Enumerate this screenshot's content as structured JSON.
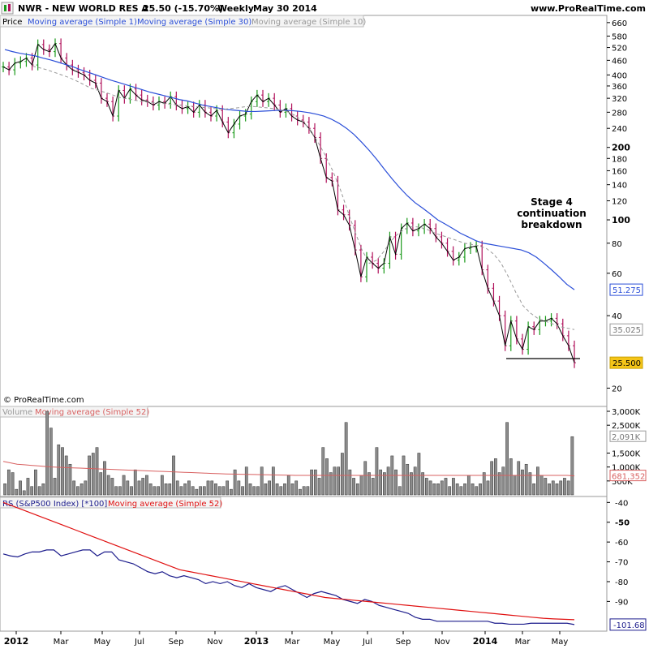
{
  "header": {
    "title": "NWR - NEW WORLD RES A",
    "price": "25.50 (-15.70%)",
    "period": "Weekly",
    "date": "May 30 2014",
    "site": "www.ProRealTime.com"
  },
  "watermark": "© ProRealTime.com",
  "annotation": [
    "Stage 4",
    "continuation",
    "breakdown"
  ],
  "colors": {
    "up": "#1a9a1a",
    "down": "#b0105a",
    "close": "#000000",
    "sma30": "#2a4ed8",
    "sma10": "#999999",
    "volume": "#8c8c8c",
    "volume_ma": "#d86060",
    "rs": "#1c1c8c",
    "rs_ma": "#e01010",
    "last_price": "#f5c518"
  },
  "chart_data": [
    {
      "type": "line",
      "panel": "price",
      "scale": "log",
      "legend": [
        "Price",
        "Moving average (Simple 1)",
        "Moving average (Simple 30)",
        "Moving average (Simple 10)"
      ],
      "ylim": [
        18,
        680
      ],
      "y_ticks": [
        660,
        580,
        520,
        460,
        400,
        360,
        320,
        280,
        240,
        200,
        180,
        160,
        140,
        120,
        100,
        80,
        60,
        40,
        20
      ],
      "x_labels": [
        "2012",
        "Mar",
        "May",
        "Jul",
        "Sep",
        "Nov",
        "2013",
        "Mar",
        "May",
        "Jul",
        "Sep",
        "Nov",
        "2014",
        "Mar",
        "May"
      ],
      "price_close": [
        432,
        420,
        448,
        455,
        470,
        440,
        535,
        510,
        500,
        540,
        470,
        440,
        420,
        410,
        400,
        380,
        370,
        320,
        310,
        270,
        345,
        320,
        350,
        330,
        315,
        310,
        300,
        310,
        305,
        325,
        300,
        290,
        295,
        280,
        300,
        280,
        270,
        285,
        255,
        230,
        250,
        270,
        275,
        310,
        330,
        310,
        320,
        300,
        280,
        290,
        270,
        260,
        255,
        240,
        220,
        180,
        150,
        145,
        110,
        105,
        95,
        75,
        58,
        70,
        66,
        63,
        66,
        85,
        72,
        92,
        97,
        90,
        92,
        96,
        92,
        85,
        80,
        74,
        68,
        70,
        76,
        77,
        78,
        62,
        52,
        46,
        40,
        30,
        38,
        32,
        29,
        36,
        35,
        38,
        38,
        39,
        37,
        33,
        30,
        25.5
      ],
      "sma30": [
        510,
        500,
        492,
        486,
        480,
        470,
        462,
        452,
        442,
        432,
        420,
        410,
        400,
        390,
        380,
        372,
        364,
        356,
        348,
        340,
        334,
        328,
        322,
        316,
        312,
        306,
        300,
        296,
        292,
        288,
        286,
        284,
        282,
        282,
        283,
        284,
        285,
        285,
        284,
        282,
        279,
        275,
        270,
        262,
        252,
        240,
        226,
        210,
        194,
        178,
        162,
        148,
        136,
        126,
        118,
        112,
        106,
        100,
        96,
        92,
        88,
        85,
        82,
        80,
        79,
        78,
        77,
        76,
        75,
        73,
        70,
        66,
        62,
        58,
        54,
        51.275
      ],
      "sma10": [
        435,
        428,
        420,
        410,
        400,
        390,
        378,
        365,
        352,
        345,
        338,
        330,
        322,
        318,
        314,
        310,
        308,
        306,
        304,
        302,
        300,
        298,
        296,
        294,
        292,
        290,
        288,
        290,
        292,
        295,
        296,
        294,
        292,
        290,
        286,
        280,
        270,
        255,
        235,
        210,
        185,
        160,
        135,
        110,
        90,
        75,
        66,
        68,
        74,
        82,
        88,
        92,
        94,
        93,
        91,
        88,
        86,
        84,
        82,
        80,
        79,
        78,
        76,
        72,
        66,
        58,
        50,
        44,
        41,
        39,
        38,
        37,
        36,
        35.5,
        35.025
      ],
      "last_labels": {
        "sma30": "51.275",
        "sma10": "35.025",
        "price": "25.500"
      }
    },
    {
      "type": "bar",
      "panel": "volume",
      "legend": [
        "Volume",
        "Moving average (Simple 52)"
      ],
      "ylim": [
        0,
        3000000
      ],
      "y_ticks": [
        "3,000K",
        "2,500K",
        "2,091K",
        "1,500K",
        "1,000K",
        "500K",
        "681,352"
      ],
      "values": [
        400,
        900,
        800,
        200,
        500,
        150,
        600,
        300,
        900,
        300,
        400,
        3000,
        2400,
        600,
        1800,
        1700,
        1400,
        1100,
        500,
        300,
        400,
        500,
        1400,
        1500,
        1700,
        800,
        1200,
        700,
        600,
        300,
        300,
        700,
        500,
        300,
        900,
        500,
        600,
        700,
        400,
        300,
        300,
        700,
        400,
        400,
        1400,
        500,
        300,
        400,
        500,
        300,
        200,
        300,
        300,
        500,
        500,
        400,
        300,
        300,
        500,
        200,
        900,
        500,
        300,
        1000,
        400,
        300,
        300,
        1000,
        400,
        500,
        1000,
        400,
        300,
        400,
        700,
        400,
        500,
        200,
        300,
        300,
        900,
        900,
        600,
        1700,
        1300,
        800,
        1000,
        1000,
        1500,
        2600,
        900,
        600,
        400,
        700,
        1200,
        800,
        600,
        1700,
        900,
        800,
        1000,
        1400,
        900,
        300,
        1400,
        1100,
        800,
        1000,
        1500,
        800,
        600,
        500,
        400,
        400,
        500,
        600,
        300,
        600,
        400,
        300,
        400,
        700,
        400,
        300,
        400,
        800,
        500,
        1200,
        1300,
        800,
        1000,
        2600,
        1300,
        700,
        1200,
        900,
        1100,
        800,
        400,
        1000,
        700,
        600,
        400,
        500,
        400,
        500,
        600,
        500,
        2091
      ],
      "ma_values": [
        1200,
        1150,
        1100,
        1080,
        1060,
        1040,
        1020,
        1000,
        990,
        980,
        970,
        960,
        950,
        940,
        930,
        920,
        910,
        900,
        890,
        880,
        870,
        860,
        850,
        840,
        830,
        820,
        810,
        800,
        790,
        780,
        770,
        760,
        750,
        745,
        740,
        735,
        730,
        725,
        720,
        715,
        710,
        705,
        700,
        700,
        700,
        700,
        700,
        700,
        700,
        700,
        700,
        700,
        700,
        700,
        700,
        700,
        700,
        700,
        700,
        700,
        700,
        700,
        700,
        700,
        700,
        700,
        700,
        700,
        700,
        700,
        700,
        700,
        700,
        700,
        700,
        700,
        700,
        700,
        700,
        700,
        700,
        700,
        681.352
      ]
    },
    {
      "type": "line",
      "panel": "rs",
      "legend": [
        "RS (S&P500 Index) [*100]",
        "Moving average (Simple 52)"
      ],
      "ylim": [
        -105,
        -37
      ],
      "y_ticks": [
        -40,
        -50,
        -60,
        -70,
        -80,
        -90,
        -101.68
      ],
      "rs": [
        -66,
        -67,
        -67.5,
        -66,
        -65,
        -65,
        -64,
        -64,
        -67,
        -66,
        -65,
        -64,
        -64,
        -67,
        -65,
        -65,
        -69,
        -70,
        -71,
        -73,
        -75,
        -76,
        -75,
        -77,
        -78,
        -77,
        -78,
        -79,
        -81,
        -80,
        -81,
        -80,
        -82,
        -83,
        -81,
        -83,
        -84,
        -85,
        -83,
        -82,
        -84,
        -86,
        -88,
        -86,
        -85,
        -86,
        -87,
        -89,
        -90,
        -91,
        -89,
        -90,
        -92,
        -93,
        -94,
        -95,
        -96,
        -98,
        -99,
        -99,
        -100,
        -100,
        -100,
        -100,
        -100,
        -100,
        -100,
        -100,
        -101,
        -101,
        -101.5,
        -101.5,
        -101.5,
        -101,
        -101,
        -101,
        -101,
        -101,
        -101,
        -101.68
      ],
      "rs_ma": [
        -40,
        -42,
        -44,
        -46,
        -48,
        -50,
        -52,
        -54,
        -56,
        -58,
        -60,
        -62,
        -64,
        -66,
        -68,
        -70,
        -72,
        -74,
        -75,
        -76,
        -77,
        -78,
        -79,
        -80,
        -81,
        -82,
        -83,
        -84,
        -85,
        -86,
        -87,
        -88,
        -88.5,
        -89,
        -89.5,
        -90,
        -90.5,
        -91,
        -91.5,
        -92,
        -92.5,
        -93,
        -93.5,
        -94,
        -94.5,
        -95,
        -95.5,
        -96,
        -96.5,
        -97,
        -97.5,
        -98,
        -98.5,
        -98.8,
        -99,
        -99.2
      ]
    }
  ]
}
